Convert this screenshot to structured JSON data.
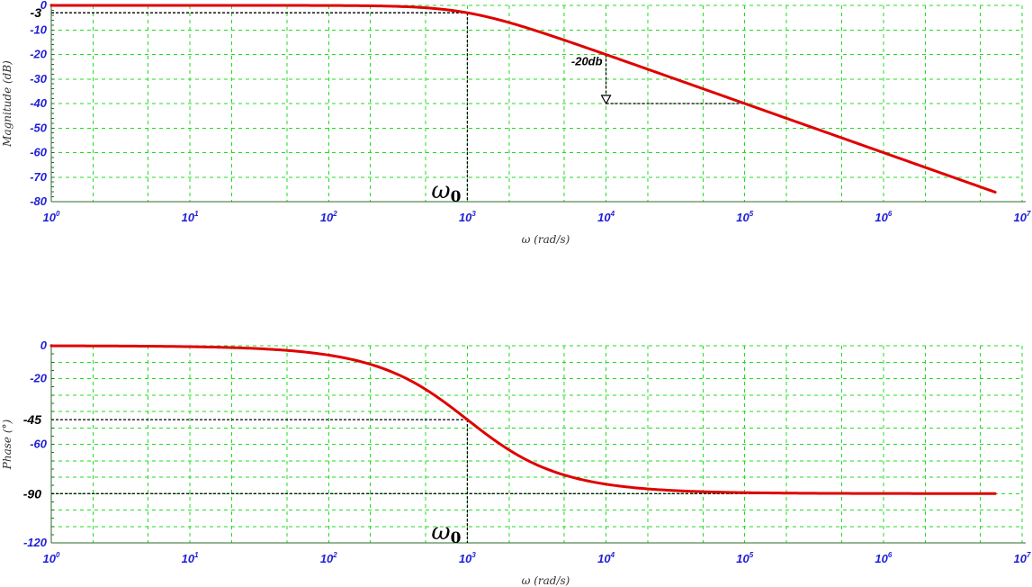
{
  "chart_data": [
    {
      "type": "line",
      "title": "",
      "xlabel": "ω (rad/s)",
      "ylabel": "Magnitude (dB)",
      "x_scale": "log",
      "xlim": [
        1,
        10000000
      ],
      "ylim": [
        -80,
        0
      ],
      "grid": true,
      "legend": "none",
      "x_ticks": [
        {
          "value": 1,
          "base": "10",
          "exp": "0"
        },
        {
          "value": 10,
          "base": "10",
          "exp": "1"
        },
        {
          "value": 100,
          "base": "10",
          "exp": "2"
        },
        {
          "value": 1000,
          "base": "10",
          "exp": "3"
        },
        {
          "value": 10000,
          "base": "10",
          "exp": "4"
        },
        {
          "value": 100000,
          "base": "10",
          "exp": "5"
        },
        {
          "value": 1000000,
          "base": "10",
          "exp": "6"
        },
        {
          "value": 10000000,
          "base": "10",
          "exp": "7"
        }
      ],
      "y_ticks": [
        {
          "value": 0,
          "label": "0"
        },
        {
          "value": -10,
          "label": "-10"
        },
        {
          "value": -20,
          "label": "-20"
        },
        {
          "value": -30,
          "label": "-30"
        },
        {
          "value": -40,
          "label": "-40"
        },
        {
          "value": -50,
          "label": "-50"
        },
        {
          "value": -60,
          "label": "-60"
        },
        {
          "value": -70,
          "label": "-70"
        },
        {
          "value": -80,
          "label": "-80"
        }
      ],
      "marker_y": {
        "value": -3,
        "label": "-3"
      },
      "corner_frequency": 1000,
      "corner_symbol": "ω",
      "corner_subscript": "0",
      "slope_annotation": {
        "label": "-20db",
        "x_start": 10000,
        "x_end": 100000,
        "y_top": -20,
        "y_bottom": -40
      },
      "series": [
        {
          "curve": "first-order-lowpass-magnitude",
          "corner": 1000,
          "x": [
            1,
            10,
            100,
            200,
            400,
            700,
            1000,
            1500,
            2000,
            3000,
            5000,
            10000,
            100000,
            1000000,
            6400000
          ],
          "y": [
            0,
            0,
            -0.04,
            -0.17,
            -0.64,
            -1.7,
            -3.01,
            -5.1,
            -6.99,
            -10,
            -14.15,
            -20.04,
            -40,
            -60,
            -76.1
          ],
          "color": "#e00000"
        }
      ]
    },
    {
      "type": "line",
      "title": "",
      "xlabel": "ω (rad/s)",
      "ylabel": "Phase (°)",
      "x_scale": "log",
      "xlim": [
        1,
        10000000
      ],
      "ylim": [
        -120,
        0
      ],
      "grid": true,
      "legend": "none",
      "x_ticks": [
        {
          "value": 1,
          "base": "10",
          "exp": "0"
        },
        {
          "value": 10,
          "base": "10",
          "exp": "1"
        },
        {
          "value": 100,
          "base": "10",
          "exp": "2"
        },
        {
          "value": 1000,
          "base": "10",
          "exp": "3"
        },
        {
          "value": 10000,
          "base": "10",
          "exp": "4"
        },
        {
          "value": 100000,
          "base": "10",
          "exp": "5"
        },
        {
          "value": 1000000,
          "base": "10",
          "exp": "6"
        },
        {
          "value": 10000000,
          "base": "10",
          "exp": "7"
        }
      ],
      "y_ticks": [
        {
          "value": 0,
          "label": "0"
        },
        {
          "value": -20,
          "label": "-20"
        },
        {
          "value": -60,
          "label": "-60"
        },
        {
          "value": -120,
          "label": "-120"
        }
      ],
      "y_grid_values": [
        0,
        -10,
        -20,
        -30,
        -40,
        -50,
        -60,
        -70,
        -80,
        -90,
        -100,
        -110,
        -120
      ],
      "marker_y": [
        {
          "value": -45,
          "label": "-45"
        },
        {
          "value": -90,
          "label": "-90"
        }
      ],
      "corner_frequency": 1000,
      "corner_symbol": "ω",
      "corner_subscript": "0",
      "series": [
        {
          "curve": "first-order-lowpass-phase",
          "corner": 1000,
          "x": [
            1,
            10,
            100,
            300,
            1000,
            3000,
            10000,
            100000,
            6400000
          ],
          "y": [
            -0.06,
            -0.57,
            -5.71,
            -16.7,
            -45,
            -71.57,
            -84.29,
            -89.43,
            -89.99
          ],
          "color": "#e00000"
        }
      ]
    }
  ]
}
